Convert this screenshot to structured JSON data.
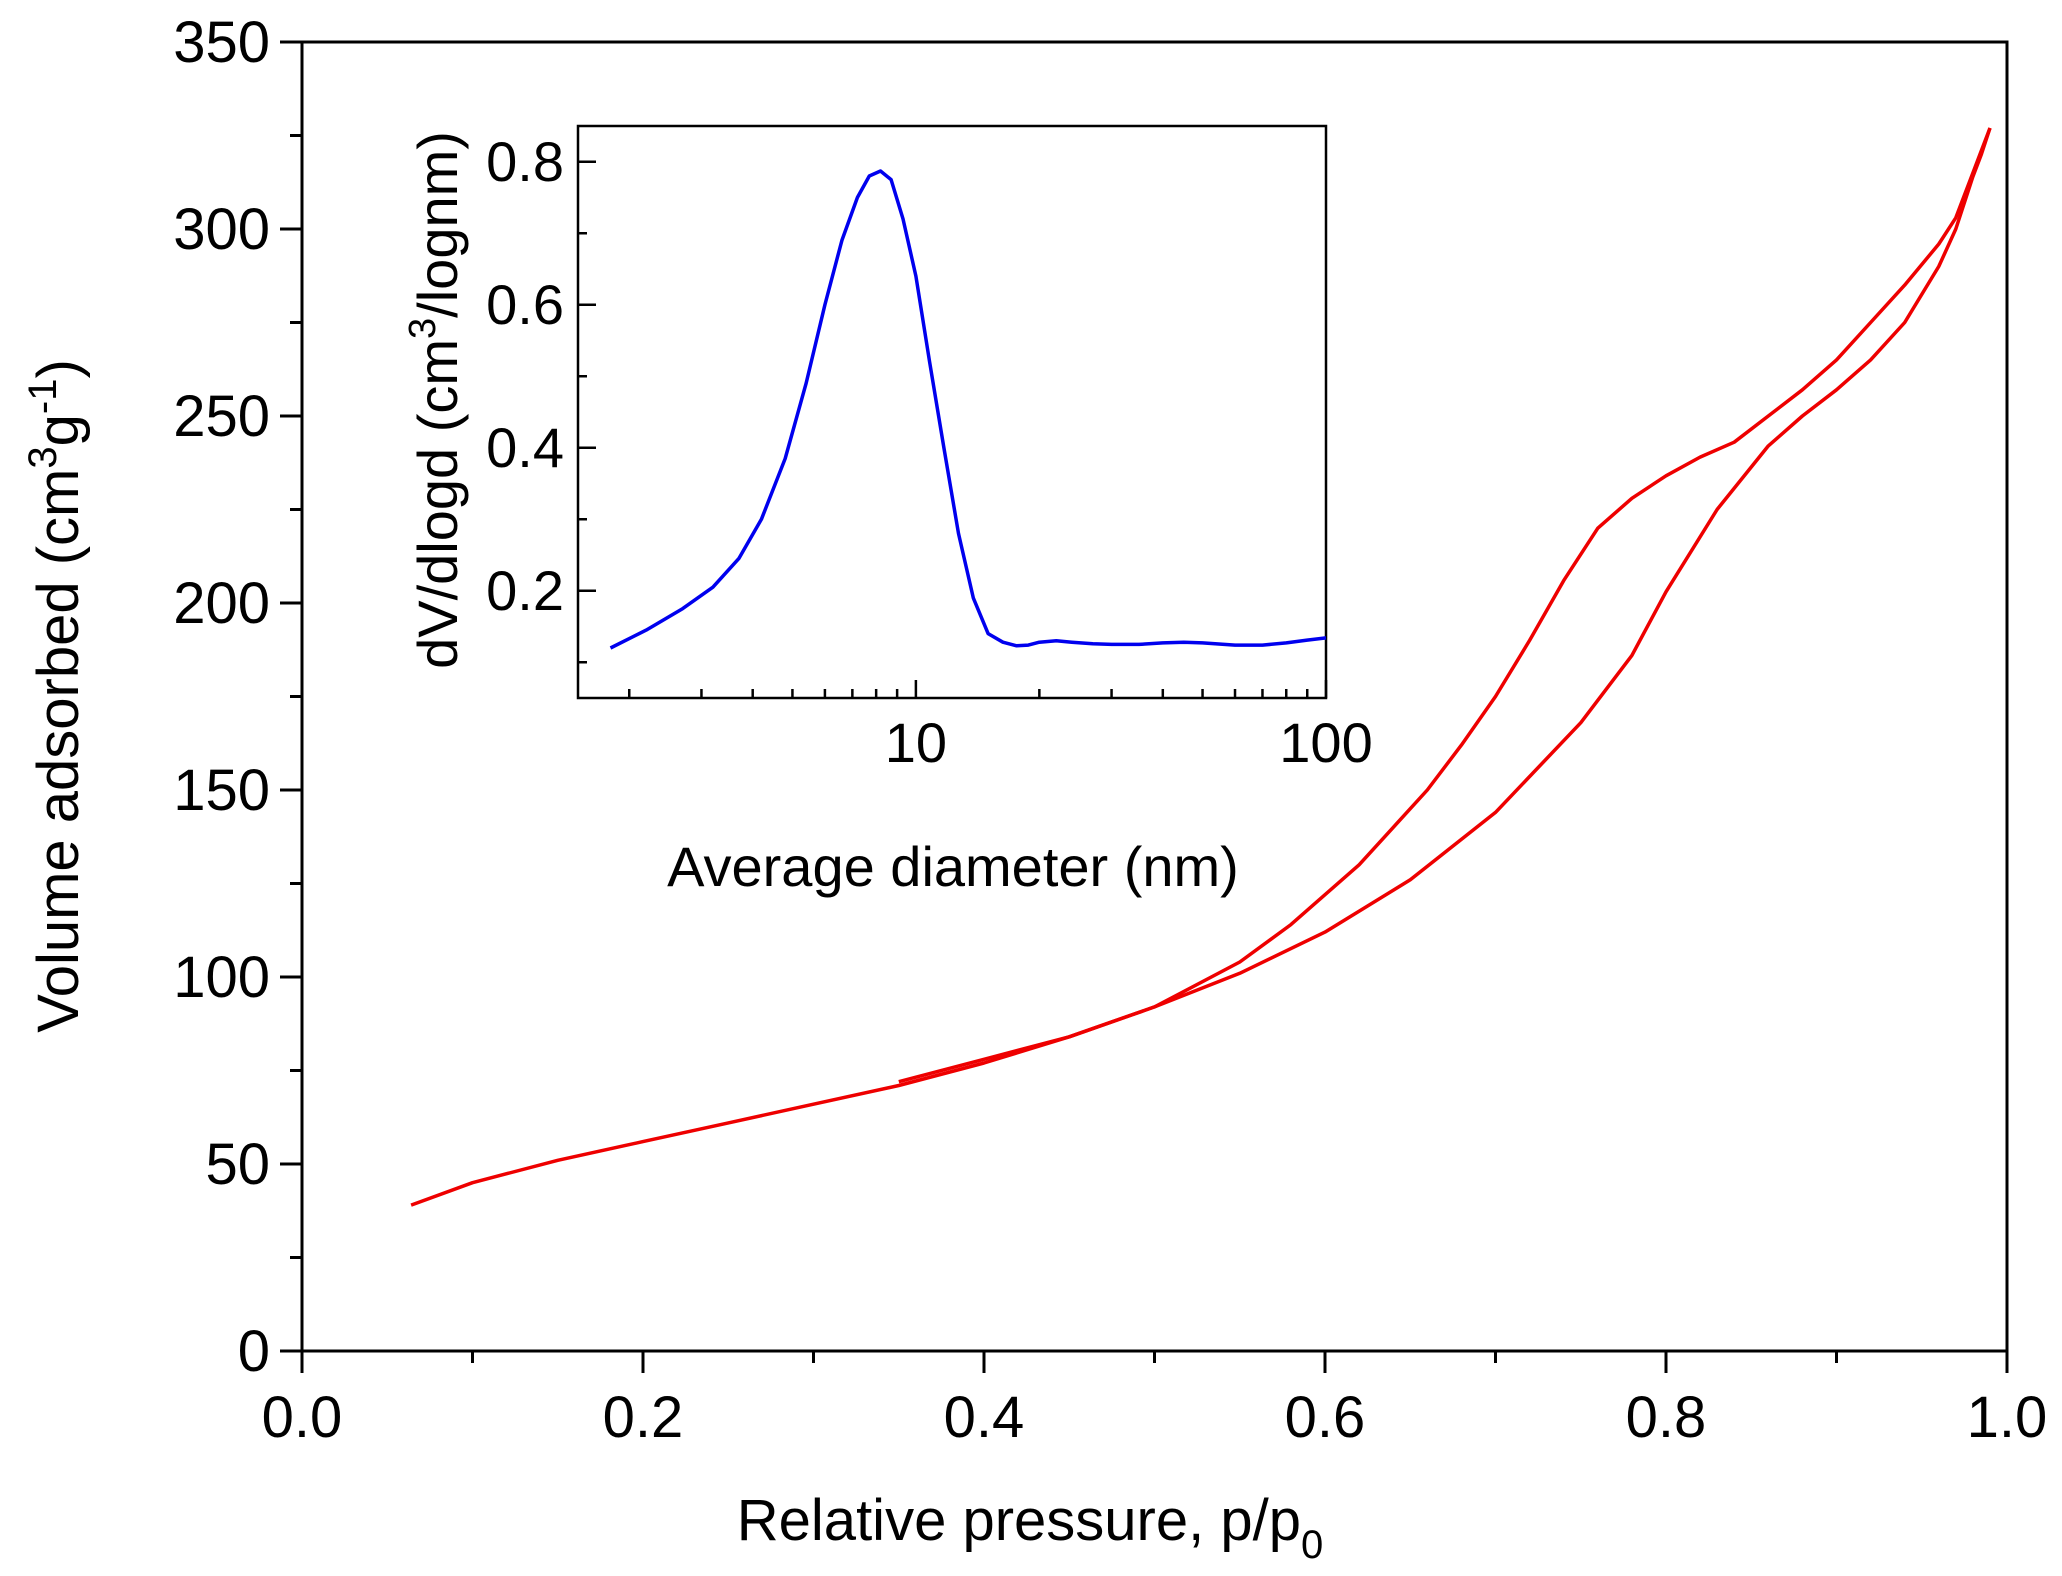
{
  "chart_data": [
    {
      "type": "line",
      "role": "main",
      "xlabel": "Relative pressure, p/p",
      "xlabel_sub": "0",
      "ylabel": "Volume adsorbed (cm",
      "ylabel_sup1": "3",
      "ylabel_mid": "g",
      "ylabel_sup2": "-1",
      "ylabel_end": ")",
      "xlim": [
        0.0,
        1.0
      ],
      "ylim": [
        0,
        350
      ],
      "x_ticks": [
        0.0,
        0.2,
        0.4,
        0.6,
        0.8,
        1.0
      ],
      "x_tick_labels": [
        "0.0",
        "0.2",
        "0.4",
        "0.6",
        "0.8",
        "1.0"
      ],
      "y_ticks": [
        0,
        50,
        100,
        150,
        200,
        250,
        300,
        350
      ],
      "y_tick_labels": [
        "0",
        "50",
        "100",
        "150",
        "200",
        "250",
        "300",
        "350"
      ],
      "line_color": "#ee0000",
      "series": [
        {
          "segment": "adsorption",
          "x": [
            0.064,
            0.1,
            0.15,
            0.2,
            0.25,
            0.3,
            0.35,
            0.4,
            0.45,
            0.5,
            0.55,
            0.6,
            0.65,
            0.7,
            0.75,
            0.78,
            0.8,
            0.83,
            0.86,
            0.88,
            0.9,
            0.92,
            0.94,
            0.96,
            0.97,
            0.98,
            0.985,
            0.99
          ],
          "y": [
            39,
            45,
            51,
            56,
            61,
            66,
            71,
            77,
            84,
            92,
            101,
            112,
            126,
            144,
            168,
            186,
            203,
            225,
            242,
            250,
            257,
            265,
            275,
            290,
            300,
            314,
            320,
            327
          ]
        },
        {
          "segment": "desorption",
          "x": [
            0.99,
            0.985,
            0.98,
            0.97,
            0.96,
            0.94,
            0.92,
            0.9,
            0.88,
            0.86,
            0.84,
            0.82,
            0.8,
            0.78,
            0.76,
            0.74,
            0.72,
            0.7,
            0.68,
            0.66,
            0.64,
            0.62,
            0.6,
            0.58,
            0.55,
            0.5,
            0.45,
            0.4,
            0.35
          ],
          "y": [
            327,
            321,
            315,
            303,
            296,
            285,
            275,
            265,
            257,
            250,
            243,
            239,
            234,
            228,
            220,
            206,
            190,
            175,
            162,
            150,
            140,
            130,
            122,
            114,
            104,
            92,
            84,
            78,
            72
          ]
        }
      ]
    },
    {
      "type": "line",
      "role": "inset",
      "xlabel": "Average diameter (nm)",
      "ylabel": "dV/dlogd (cm",
      "ylabel_sup": "3",
      "ylabel_end": "/lognm)",
      "x_scale": "log",
      "xlim": [
        1.5,
        100
      ],
      "ylim": [
        0.05,
        0.85
      ],
      "x_ticks": [
        10,
        100
      ],
      "x_tick_labels": [
        "10",
        "100"
      ],
      "y_ticks": [
        0.2,
        0.4,
        0.6,
        0.8
      ],
      "y_tick_labels": [
        "0.2",
        "0.4",
        "0.6",
        "0.8"
      ],
      "line_color": "#0000ee",
      "series": [
        {
          "x": [
            1.8,
            2.2,
            2.7,
            3.2,
            3.7,
            4.2,
            4.8,
            5.4,
            6.0,
            6.6,
            7.2,
            7.7,
            8.2,
            8.7,
            9.3,
            10.0,
            10.8,
            11.7,
            12.7,
            13.8,
            15.0,
            16.3,
            17.6,
            18.8,
            20.0,
            22.0,
            24.0,
            27.0,
            30.0,
            35.0,
            40.0,
            45.0,
            50.0,
            60.0,
            70.0,
            80.0,
            90.0,
            100.0
          ],
          "y": [
            0.12,
            0.145,
            0.175,
            0.205,
            0.245,
            0.3,
            0.385,
            0.49,
            0.6,
            0.69,
            0.75,
            0.78,
            0.787,
            0.775,
            0.72,
            0.64,
            0.52,
            0.4,
            0.28,
            0.19,
            0.14,
            0.128,
            0.123,
            0.124,
            0.128,
            0.13,
            0.128,
            0.126,
            0.125,
            0.125,
            0.127,
            0.128,
            0.127,
            0.124,
            0.124,
            0.127,
            0.131,
            0.134
          ]
        }
      ]
    }
  ]
}
